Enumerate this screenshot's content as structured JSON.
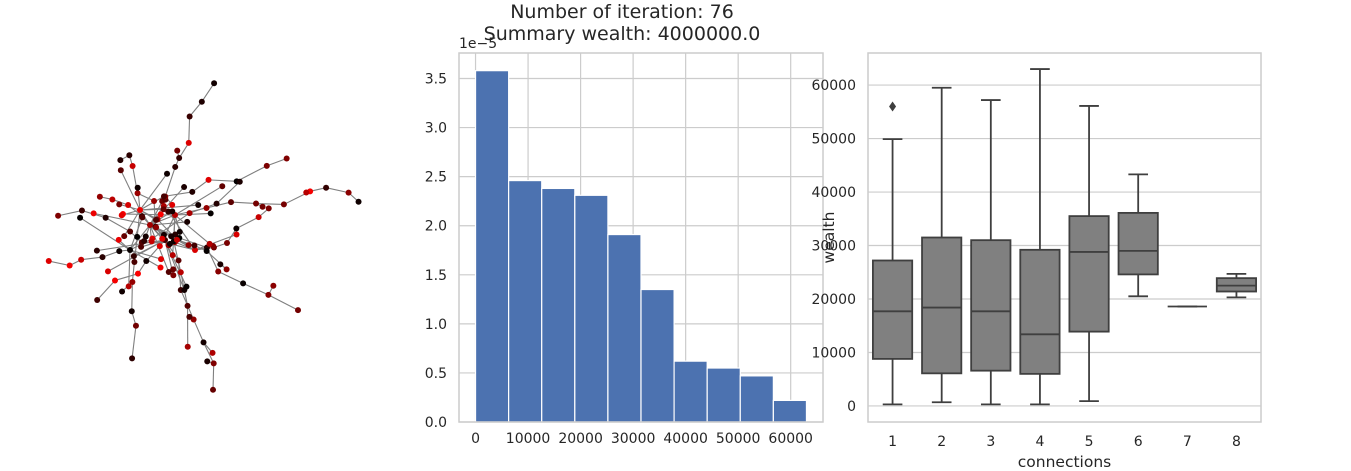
{
  "figure": {
    "title_line1": "Number of iteration: 76",
    "title_line2": "Summary wealth: 4000000.0"
  },
  "colors": {
    "histogram_bar": "#4c72b0",
    "box_fill": "#808080",
    "box_line": "#3f3f3f",
    "grid": "#cccccc",
    "edge": "#7f7f7f"
  },
  "chart_data": [
    {
      "type": "network",
      "node_color_scale": [
        "#000000",
        "#ff0000"
      ],
      "description_fields": {}
    },
    {
      "type": "bar",
      "subtype": "histogram",
      "bin_edges": [
        0,
        6300,
        12600,
        18900,
        25200,
        31500,
        37800,
        44100,
        50400,
        56700,
        63000
      ],
      "values": [
        3.58e-05,
        2.46e-05,
        2.38e-05,
        2.31e-05,
        1.91e-05,
        1.35e-05,
        6.2e-06,
        5.5e-06,
        4.7e-06,
        2.2e-06
      ],
      "xlim": [
        -3150,
        66150
      ],
      "ylim": [
        0,
        3.76e-05
      ],
      "xticks": [
        "0",
        "10000",
        "20000",
        "30000",
        "40000",
        "50000",
        "60000"
      ],
      "yticks": [
        "0.0",
        "0.5",
        "1.0",
        "1.5",
        "2.0",
        "2.5",
        "3.0",
        "3.5"
      ],
      "offset_label": "1e−5",
      "grid": true
    },
    {
      "type": "box",
      "xlabel": "connections",
      "ylabel": "wealth",
      "categories": [
        "1",
        "2",
        "3",
        "4",
        "5",
        "6",
        "7",
        "8"
      ],
      "boxes": [
        {
          "min": 300,
          "q1": 8800,
          "median": 17700,
          "q3": 27200,
          "max": 49900,
          "outliers": [
            56000
          ]
        },
        {
          "min": 700,
          "q1": 6100,
          "median": 18400,
          "q3": 31500,
          "max": 59500,
          "outliers": []
        },
        {
          "min": 300,
          "q1": 6600,
          "median": 17700,
          "q3": 31000,
          "max": 57200,
          "outliers": []
        },
        {
          "min": 300,
          "q1": 6000,
          "median": 13400,
          "q3": 29200,
          "max": 63000,
          "outliers": []
        },
        {
          "min": 900,
          "q1": 13900,
          "median": 28800,
          "q3": 35500,
          "max": 56100,
          "outliers": []
        },
        {
          "min": 20500,
          "q1": 24600,
          "median": 29000,
          "q3": 36100,
          "max": 43300,
          "outliers": []
        },
        {
          "min": 18600,
          "q1": 18600,
          "median": 18600,
          "q3": 18600,
          "max": 18600,
          "outliers": []
        },
        {
          "min": 20300,
          "q1": 21400,
          "median": 22500,
          "q3": 23900,
          "max": 24700,
          "outliers": []
        }
      ],
      "ylim": [
        -3000,
        66000
      ],
      "yticks": [
        0,
        10000,
        20000,
        30000,
        40000,
        50000,
        60000
      ],
      "grid": true
    }
  ]
}
